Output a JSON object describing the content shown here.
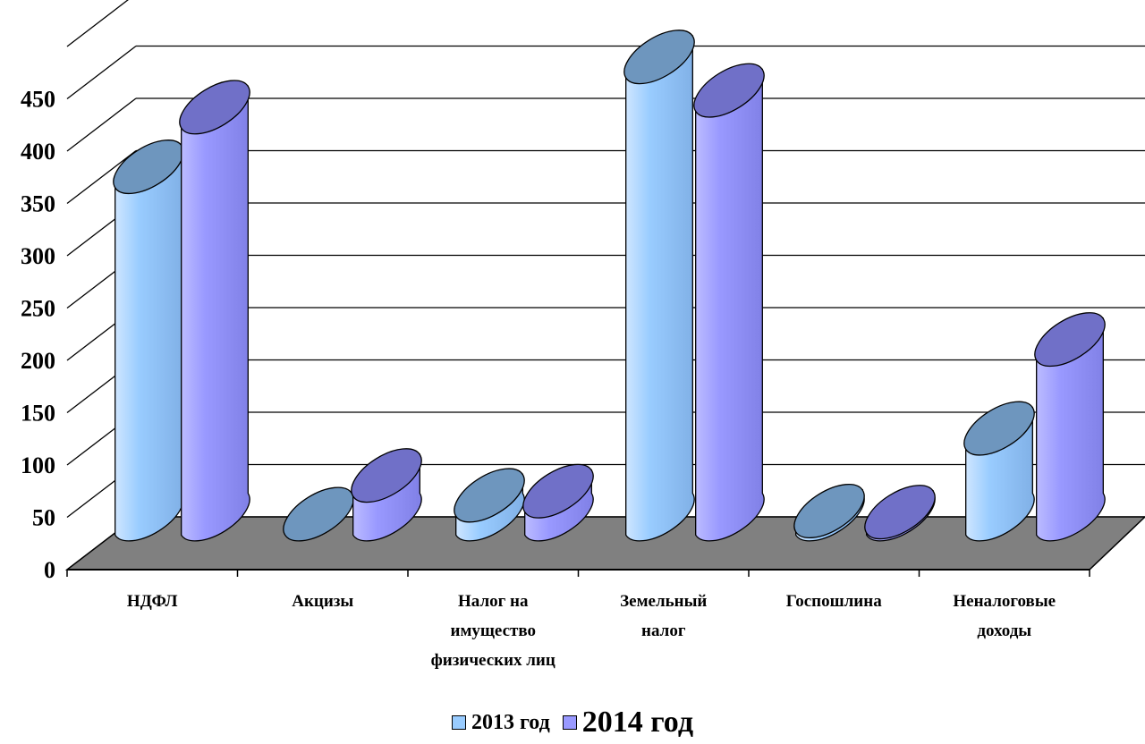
{
  "chart_data": {
    "type": "bar",
    "style": "3d-cylinder",
    "categories": [
      [
        "НДФЛ"
      ],
      [
        "Акцизы"
      ],
      [
        "Налог на",
        "имущество",
        "физических лиц"
      ],
      [
        "Земельный",
        "налог"
      ],
      [
        "Госпошлина"
      ],
      [
        "Неналоговые",
        "доходы"
      ]
    ],
    "series": [
      {
        "name": "2013 год",
        "values": [
          332,
          0,
          18,
          437,
          3,
          82
        ]
      },
      {
        "name": "2014 год",
        "values": [
          389,
          37,
          22,
          405,
          2,
          167
        ]
      }
    ],
    "ylim": [
      0,
      450
    ],
    "yticks": [
      "0",
      "50",
      "100",
      "150",
      "200",
      "250",
      "300",
      "350",
      "400",
      "450"
    ],
    "grid": true,
    "legend_position": "bottom",
    "colors": {
      "series": [
        "#99CCFF",
        "#9999FF"
      ],
      "series_tops": [
        "#6E96BE",
        "#7070C8"
      ],
      "floor": "#808080"
    }
  }
}
